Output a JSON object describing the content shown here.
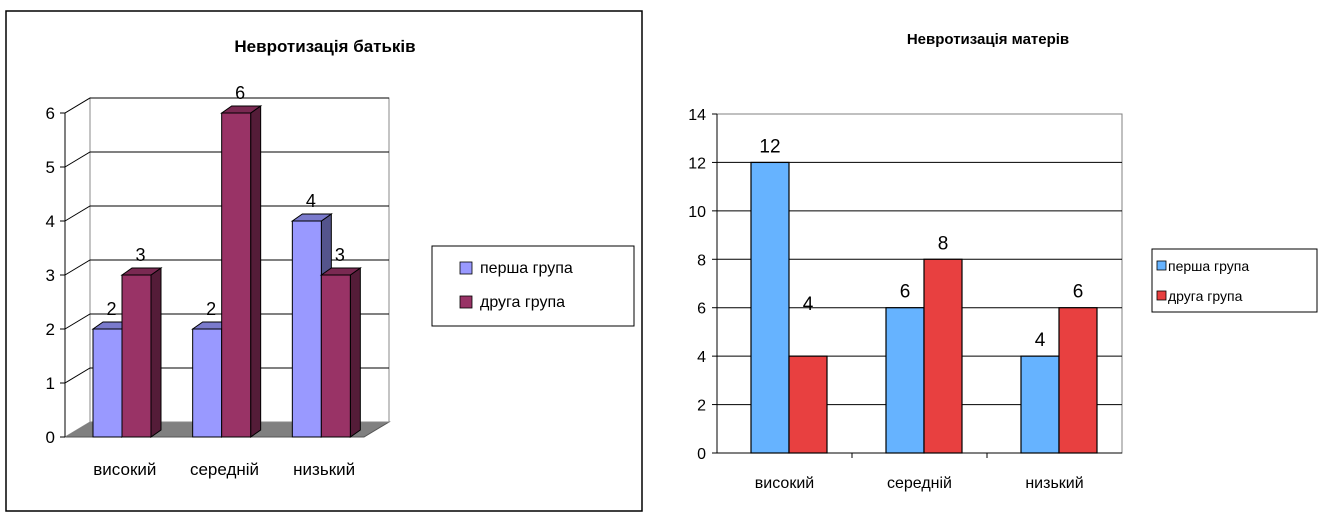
{
  "chart_data": [
    {
      "type": "bar",
      "title": "Невротизація батьків",
      "categories": [
        "високий",
        "середній",
        "низький"
      ],
      "series": [
        {
          "name": "перша група",
          "values": [
            2,
            2,
            4
          ],
          "color": "#9999ff"
        },
        {
          "name": "друга група",
          "values": [
            3,
            6,
            3
          ],
          "color": "#993366"
        }
      ],
      "ylim": [
        0,
        6
      ],
      "yticks": [
        0,
        1,
        2,
        3,
        4,
        5,
        6
      ],
      "grid": true,
      "legend": "right",
      "style": "3d"
    },
    {
      "type": "bar",
      "title": "Невротизація матерів",
      "categories": [
        "високий",
        "середній",
        "низький"
      ],
      "series": [
        {
          "name": "перша група",
          "values": [
            12,
            6,
            4
          ],
          "color": "#66b3ff"
        },
        {
          "name": "друга група",
          "values": [
            4,
            8,
            6
          ],
          "color": "#e84040"
        }
      ],
      "ylim": [
        0,
        14
      ],
      "yticks": [
        0,
        2,
        4,
        6,
        8,
        10,
        12,
        14
      ],
      "grid": true,
      "legend": "right",
      "style": "flat"
    }
  ]
}
